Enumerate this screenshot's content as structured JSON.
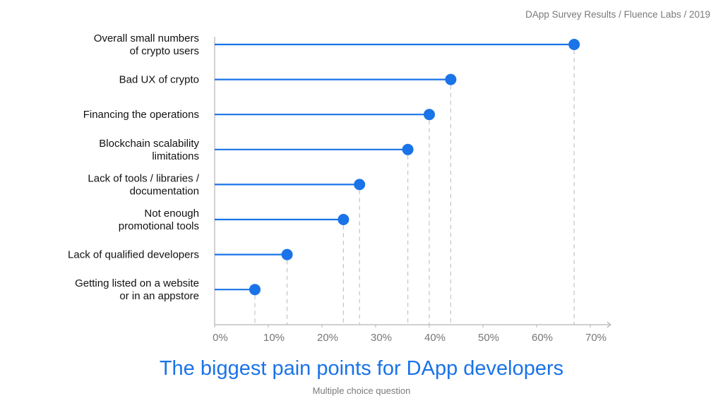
{
  "header": {
    "source": "DApp Survey Results / Fluence Labs / 2019"
  },
  "chart_data": {
    "type": "scatter",
    "style": "lollipop-horizontal",
    "title": "The biggest pain points for DApp developers",
    "subtitle": "Multiple choice question",
    "categories": [
      [
        "Overall small numbers",
        "of crypto users"
      ],
      [
        "Bad UX of crypto"
      ],
      [
        "Financing  the operations"
      ],
      [
        "Blockchain scalability",
        "limitations"
      ],
      [
        "Lack of tools / libraries /",
        "documentation"
      ],
      [
        "Not enough",
        "promotional tools"
      ],
      [
        "Lack of qualified developers"
      ],
      [
        "Getting listed on a website",
        "or in an appstore"
      ]
    ],
    "values": [
      67,
      44,
      40,
      36,
      27,
      24,
      13.5,
      7.5
    ],
    "xlim": [
      0,
      73
    ],
    "xticks": [
      0,
      10,
      20,
      30,
      40,
      50,
      60,
      70
    ],
    "xtick_labels": [
      "0%",
      "10%",
      "20%",
      "30%",
      "40%",
      "50%",
      "60%",
      "70%"
    ],
    "grid": false,
    "colors": {
      "accent": "#1a73e8",
      "axis": "#b3b3b3",
      "dash": "#c4c4c4",
      "label": "#111111",
      "tick": "#777777"
    }
  }
}
